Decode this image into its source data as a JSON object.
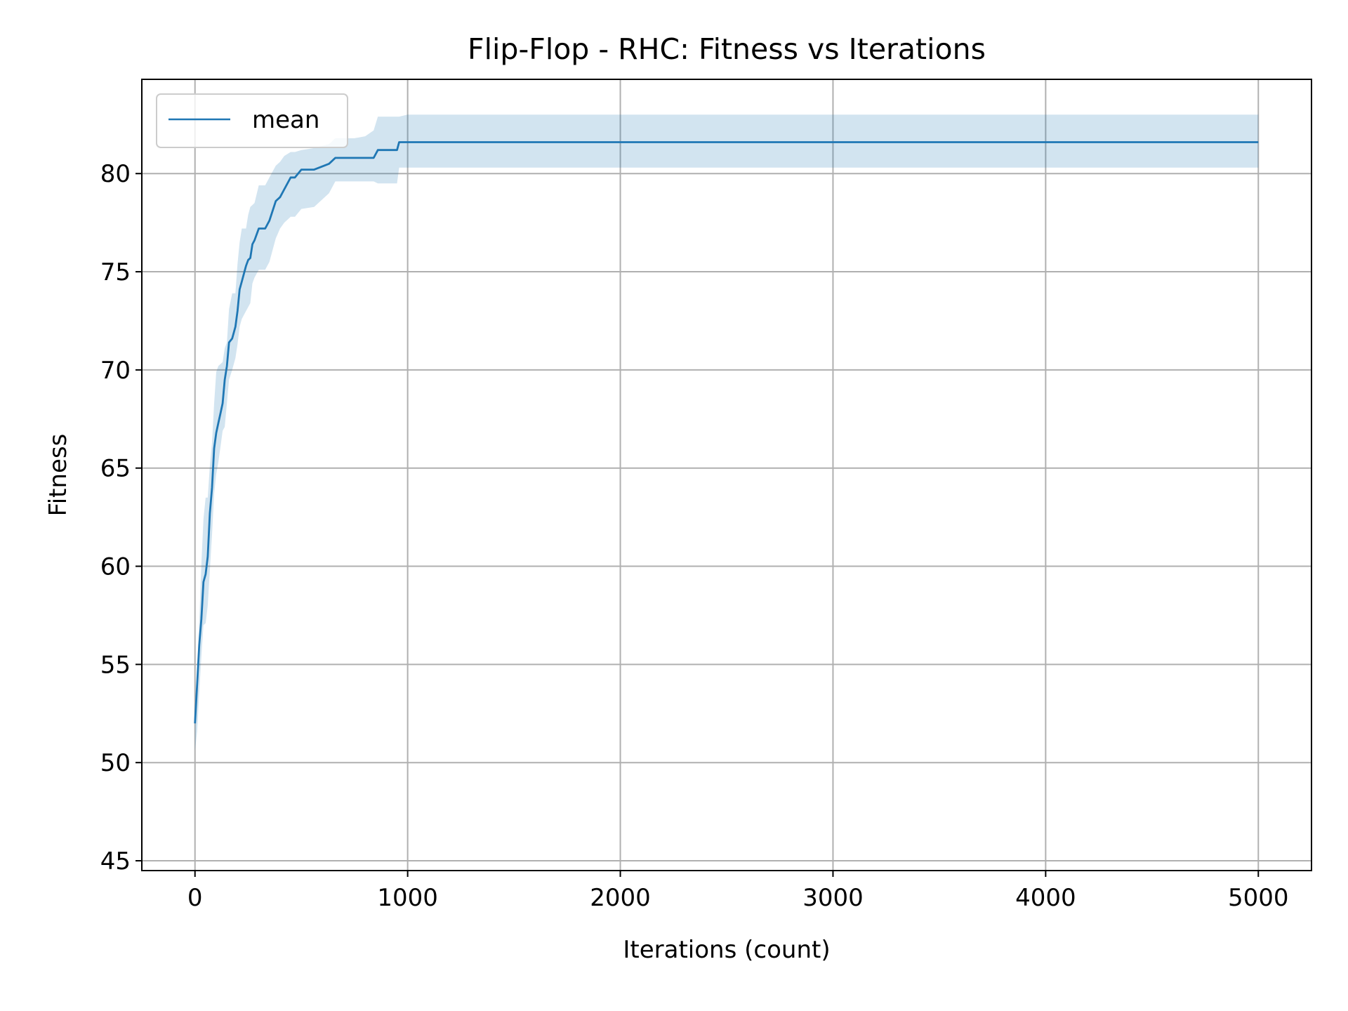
{
  "chart_data": {
    "type": "line",
    "title": "Flip-Flop - RHC: Fitness vs Iterations",
    "xlabel": "Iterations (count)",
    "ylabel": "Fitness",
    "xlim": [
      -250,
      5250
    ],
    "ylim": [
      44.5,
      84.8
    ],
    "xticks": [
      0,
      1000,
      2000,
      3000,
      4000,
      5000
    ],
    "yticks": [
      45,
      50,
      55,
      60,
      65,
      70,
      75,
      80
    ],
    "grid": true,
    "legend": {
      "placement": "upper-left",
      "entries": [
        "mean"
      ]
    },
    "colors": {
      "line": "#1f77b4",
      "band": "#1f77b4",
      "grid": "#b0b0b0"
    },
    "series": [
      {
        "name": "mean",
        "x": [
          0,
          10,
          20,
          30,
          40,
          50,
          60,
          70,
          80,
          90,
          100,
          110,
          120,
          130,
          140,
          150,
          160,
          175,
          190,
          200,
          210,
          220,
          240,
          250,
          260,
          270,
          280,
          300,
          330,
          350,
          380,
          400,
          420,
          450,
          470,
          500,
          560,
          630,
          660,
          700,
          750,
          800,
          840,
          860,
          950,
          960,
          1000,
          2000,
          3000,
          4000,
          5000
        ],
        "y": [
          52,
          54,
          56,
          57.3,
          59.2,
          59.6,
          60.5,
          62.7,
          64,
          66,
          66.8,
          67.3,
          67.8,
          68.3,
          69.5,
          70.2,
          71.4,
          71.6,
          72.2,
          73,
          74.1,
          74.5,
          75.3,
          75.6,
          75.7,
          76.4,
          76.6,
          77.2,
          77.2,
          77.6,
          78.6,
          78.8,
          79.2,
          79.8,
          79.8,
          80.2,
          80.2,
          80.5,
          80.8,
          80.8,
          80.8,
          80.8,
          80.8,
          81.2,
          81.2,
          81.6,
          81.6,
          81.6,
          81.6,
          81.6,
          81.6
        ],
        "upper": [
          52.2,
          54.6,
          57.2,
          60.1,
          62.4,
          63.5,
          63.5,
          65.1,
          66.3,
          68.3,
          69.9,
          70.2,
          70.3,
          70.4,
          71.1,
          71.4,
          73.1,
          73.9,
          73.9,
          75.4,
          76.5,
          77.2,
          77.2,
          77.9,
          78.3,
          78.4,
          78.5,
          79.4,
          79.4,
          79.8,
          80.4,
          80.6,
          80.9,
          81.1,
          81.1,
          81.2,
          81.3,
          81.5,
          81.8,
          81.8,
          81.8,
          81.9,
          82.2,
          82.9,
          82.9,
          82.9,
          83,
          83,
          83,
          83,
          83
        ]
      }
    ],
    "band_lower": [
      50.6,
      51.6,
      53.6,
      55.4,
      57,
      57.1,
      58,
      59.8,
      61.6,
      63.7,
      64.7,
      65.3,
      66.1,
      66.9,
      67.1,
      68.3,
      69.5,
      70,
      70.6,
      71.3,
      72.2,
      72.6,
      73,
      73.2,
      73.4,
      74.4,
      74.7,
      75.1,
      75.1,
      75.5,
      76.7,
      77.2,
      77.5,
      77.8,
      77.8,
      78.2,
      78.3,
      79,
      79.6,
      79.6,
      79.6,
      79.6,
      79.6,
      79.5,
      79.5,
      80.3,
      80.3,
      80.3,
      80.3,
      80.3,
      80.3
    ]
  }
}
